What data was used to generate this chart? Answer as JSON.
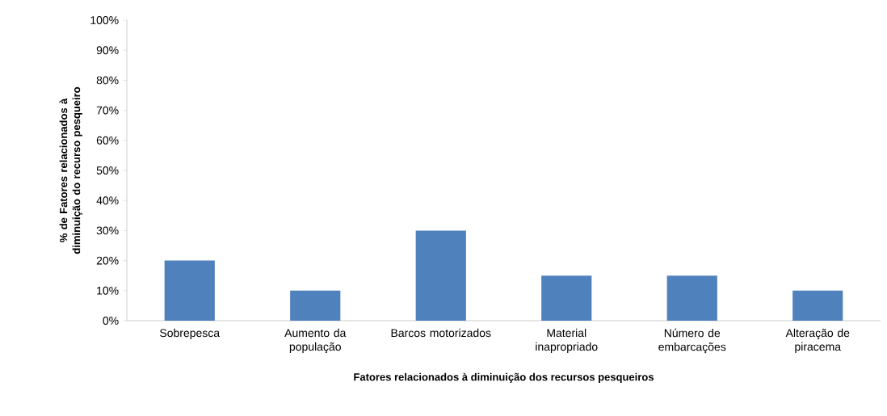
{
  "chart_data": {
    "type": "bar",
    "xlabel": "Fatores relacionados à diminuição dos recursos pesqueiros",
    "ylabel": "% de Fatores relacionados à diminuição do recurso pesqueiro",
    "categories": [
      "Sobrepesca",
      "Aumento da população",
      "Barcos motorizados",
      "Material inapropriado",
      "Número de embarcações",
      "Alteração de piracema"
    ],
    "values": [
      20,
      10,
      30,
      15,
      15,
      10
    ],
    "color": "#4f81bd",
    "ylim": [
      0,
      100
    ],
    "yticks": [
      {
        "value": 0,
        "label": "0%"
      },
      {
        "value": 10,
        "label": "10%"
      },
      {
        "value": 20,
        "label": "20%"
      },
      {
        "value": 30,
        "label": "30%"
      },
      {
        "value": 40,
        "label": "40%"
      },
      {
        "value": 50,
        "label": "50%"
      },
      {
        "value": 60,
        "label": "60%"
      },
      {
        "value": 70,
        "label": "70%"
      },
      {
        "value": 80,
        "label": "80%"
      },
      {
        "value": 90,
        "label": "90%"
      },
      {
        "value": 100,
        "label": "100%"
      }
    ]
  }
}
